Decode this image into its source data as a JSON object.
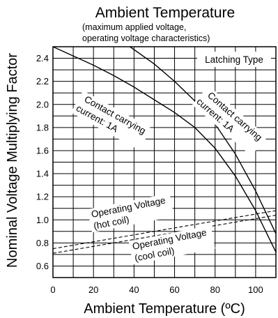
{
  "chart_data": {
    "type": "line",
    "title": "Ambient Temperature",
    "subtitle_lines": [
      "(maximum applied voltage,",
      "operating voltage characteristics)"
    ],
    "xlabel": "Ambient Temperature (ºC)",
    "ylabel": "Nominal Voltage Multiplying Factor",
    "xlim": [
      0,
      110
    ],
    "ylim": [
      0.5,
      2.5
    ],
    "x_ticks": [
      "0",
      "20",
      "40",
      "60",
      "80",
      "100"
    ],
    "y_ticks": [
      "0.6",
      "0.8",
      "1.0",
      "1.2",
      "1.4",
      "1.6",
      "1.8",
      "2.0",
      "2.2",
      "2.4"
    ],
    "grid": true,
    "legend_box": "Latching Type",
    "series": [
      {
        "style": "solid",
        "label_lines": [
          "Contact carrying",
          "current: 1A"
        ],
        "x": [
          0,
          10,
          20,
          30,
          40,
          50,
          60,
          70,
          80,
          90,
          100,
          110
        ],
        "y": [
          2.5,
          2.42,
          2.34,
          2.25,
          2.15,
          2.04,
          1.93,
          1.8,
          1.62,
          1.38,
          1.08,
          0.72
        ]
      },
      {
        "style": "solid",
        "label_lines": [
          "Contact carrying",
          "current: 1A"
        ],
        "x": [
          38,
          50,
          60,
          70,
          80,
          90,
          100,
          110
        ],
        "y": [
          2.5,
          2.35,
          2.2,
          2.03,
          1.83,
          1.57,
          1.25,
          0.88
        ]
      },
      {
        "style": "dashed",
        "label_lines": [
          "Operating Voltage",
          "(hot coil)"
        ],
        "x": [
          0,
          110
        ],
        "y": [
          0.75,
          1.08
        ]
      },
      {
        "style": "dashed",
        "label_lines": [
          "Operating Voltage",
          "(cool coil)"
        ],
        "x": [
          0,
          110
        ],
        "y": [
          0.71,
          1.04
        ]
      }
    ]
  }
}
